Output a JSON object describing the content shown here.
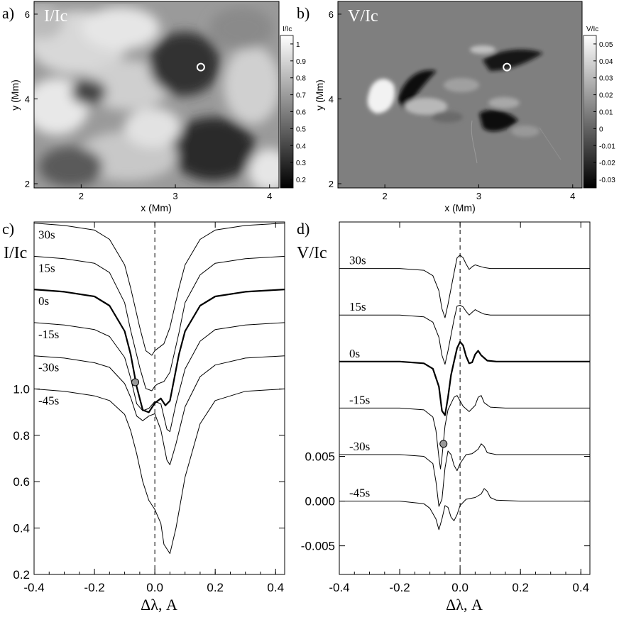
{
  "chart_data": [
    {
      "id": "a",
      "type": "heatmap",
      "panel_label": "a)",
      "title": "I/Ic",
      "xlabel": "x (Mm)",
      "ylabel": "y (Mm)",
      "xlim": [
        1.5,
        4.1
      ],
      "ylim": [
        1.9,
        6.3
      ],
      "xticks": [
        "2",
        "3",
        "4"
      ],
      "xtick_values": [
        2,
        3,
        4
      ],
      "yticks": [
        "2",
        "4",
        "6"
      ],
      "ytick_values": [
        2,
        4,
        6
      ],
      "colorbar": {
        "label": "I/Ic",
        "range": [
          0.15,
          1.05
        ],
        "ticks": [
          "1",
          "0.9",
          "0.8",
          "0.7",
          "0.6",
          "0.5",
          "0.4",
          "0.3",
          "0.2"
        ],
        "tick_values": [
          1.0,
          0.9,
          0.8,
          0.7,
          0.6,
          0.5,
          0.4,
          0.3,
          0.2
        ]
      },
      "marker": {
        "x": 3.27,
        "y": 4.75
      },
      "colors": {
        "low": "#000000",
        "high": "#ffffff"
      }
    },
    {
      "id": "b",
      "type": "heatmap",
      "panel_label": "b)",
      "title": "V/Ic",
      "xlabel": "x (Mm)",
      "ylabel": "y (Mm)",
      "xlim": [
        1.5,
        4.1
      ],
      "ylim": [
        1.9,
        6.3
      ],
      "xticks": [
        "2",
        "3",
        "4"
      ],
      "xtick_values": [
        2,
        3,
        4
      ],
      "yticks": [
        "2",
        "4",
        "6"
      ],
      "ytick_values": [
        2,
        4,
        6
      ],
      "colorbar": {
        "label": "V/Ic",
        "range": [
          -0.035,
          0.055
        ],
        "ticks": [
          "0.05",
          "0.04",
          "0.03",
          "0.02",
          "0.01",
          "0",
          "-0.01",
          "-0.02",
          "-0.03"
        ],
        "tick_values": [
          0.05,
          0.04,
          0.03,
          0.02,
          0.01,
          0,
          -0.01,
          -0.02,
          -0.03
        ]
      },
      "marker": {
        "x": 3.3,
        "y": 4.75
      },
      "colors": {
        "low": "#000000",
        "high": "#ffffff",
        "background": "#7f7f7f"
      }
    },
    {
      "id": "c",
      "type": "line",
      "panel_label": "c)",
      "ylabel": "I/Ic",
      "xlabel": "Δλ, A",
      "xlim": [
        -0.4,
        0.43
      ],
      "ylim": [
        0.2,
        1.72
      ],
      "xticks": [
        "-0.4",
        "-0.2",
        "0.0",
        "0.2",
        "0.4"
      ],
      "xtick_values": [
        -0.4,
        -0.2,
        0.0,
        0.2,
        0.4
      ],
      "yticks": [
        "1.0",
        "0.8",
        "0.6",
        "0.4",
        "0.2"
      ],
      "ytick_values": [
        1.0,
        0.8,
        0.6,
        0.4,
        0.2
      ],
      "series_offset_step": 0.143,
      "series": [
        {
          "name": "30s",
          "offset_index": 5,
          "bold": false,
          "x": [
            -0.4,
            -0.3,
            -0.2,
            -0.15,
            -0.1,
            -0.08,
            -0.05,
            -0.03,
            -0.01,
            0.0,
            0.01,
            0.03,
            0.05,
            0.08,
            0.1,
            0.15,
            0.2,
            0.3,
            0.43
          ],
          "y": [
            1.0,
            0.99,
            0.97,
            0.93,
            0.82,
            0.72,
            0.55,
            0.45,
            0.43,
            0.45,
            0.46,
            0.48,
            0.55,
            0.72,
            0.82,
            0.93,
            0.97,
            0.99,
            1.0
          ]
        },
        {
          "name": "15s",
          "offset_index": 4,
          "bold": false,
          "x": [
            -0.4,
            -0.3,
            -0.2,
            -0.15,
            -0.1,
            -0.08,
            -0.05,
            -0.03,
            -0.01,
            0.0,
            0.01,
            0.03,
            0.05,
            0.08,
            0.1,
            0.15,
            0.2,
            0.3,
            0.43
          ],
          "y": [
            1.0,
            0.99,
            0.97,
            0.93,
            0.8,
            0.68,
            0.52,
            0.43,
            0.42,
            0.44,
            0.45,
            0.46,
            0.5,
            0.67,
            0.8,
            0.92,
            0.97,
            0.99,
            1.0
          ]
        },
        {
          "name": "0s",
          "offset_index": 3,
          "bold": true,
          "x": [
            -0.4,
            -0.3,
            -0.2,
            -0.15,
            -0.1,
            -0.08,
            -0.06,
            -0.04,
            -0.02,
            0.0,
            0.02,
            0.035,
            0.05,
            0.08,
            0.1,
            0.15,
            0.2,
            0.3,
            0.43
          ],
          "y": [
            1.0,
            0.99,
            0.97,
            0.93,
            0.82,
            0.72,
            0.58,
            0.48,
            0.47,
            0.51,
            0.53,
            0.5,
            0.52,
            0.72,
            0.82,
            0.93,
            0.97,
            0.99,
            1.0
          ]
        },
        {
          "name": "-15s",
          "offset_index": 2,
          "bold": false,
          "x": [
            -0.4,
            -0.3,
            -0.2,
            -0.15,
            -0.1,
            -0.08,
            -0.06,
            -0.04,
            -0.02,
            0.0,
            0.02,
            0.04,
            0.05,
            0.07,
            0.1,
            0.15,
            0.2,
            0.3,
            0.43
          ],
          "y": [
            1.0,
            0.99,
            0.97,
            0.94,
            0.85,
            0.76,
            0.65,
            0.62,
            0.63,
            0.66,
            0.65,
            0.54,
            0.53,
            0.65,
            0.8,
            0.92,
            0.97,
            0.99,
            1.0
          ]
        },
        {
          "name": "-30s",
          "offset_index": 1,
          "bold": false,
          "x": [
            -0.4,
            -0.3,
            -0.2,
            -0.15,
            -0.1,
            -0.08,
            -0.06,
            -0.04,
            -0.02,
            0.0,
            0.02,
            0.04,
            0.05,
            0.07,
            0.1,
            0.15,
            0.2,
            0.3,
            0.43
          ],
          "y": [
            1.0,
            0.99,
            0.97,
            0.95,
            0.88,
            0.82,
            0.74,
            0.72,
            0.74,
            0.75,
            0.68,
            0.55,
            0.53,
            0.62,
            0.78,
            0.91,
            0.96,
            0.99,
            1.0
          ]
        },
        {
          "name": "-45s",
          "offset_index": 0,
          "bold": false,
          "x": [
            -0.4,
            -0.3,
            -0.2,
            -0.15,
            -0.1,
            -0.08,
            -0.06,
            -0.04,
            -0.02,
            0.0,
            0.02,
            0.03,
            0.05,
            0.07,
            0.1,
            0.15,
            0.2,
            0.3,
            0.43
          ],
          "y": [
            1.0,
            0.99,
            0.97,
            0.95,
            0.89,
            0.82,
            0.72,
            0.6,
            0.52,
            0.48,
            0.42,
            0.33,
            0.29,
            0.4,
            0.62,
            0.85,
            0.95,
            0.99,
            1.0
          ]
        }
      ],
      "marker": {
        "series": "0s",
        "x": -0.065,
        "y": 0.6
      },
      "vline": 0.0
    },
    {
      "id": "d",
      "type": "line",
      "panel_label": "d)",
      "ylabel": "V/Ic",
      "xlabel": "Δλ, A",
      "xlim": [
        -0.4,
        0.43
      ],
      "ylim": [
        -0.0082,
        0.0312
      ],
      "xticks": [
        "-0.4",
        "-0.2",
        "0.0",
        "0.2",
        "0.4"
      ],
      "xtick_values": [
        -0.4,
        -0.2,
        0.0,
        0.2,
        0.4
      ],
      "yticks": [
        "0.005",
        "0.000",
        "-0.005"
      ],
      "ytick_values": [
        0.005,
        0.0,
        -0.005
      ],
      "series_offset_step": 0.0052,
      "series": [
        {
          "name": "30s",
          "offset_index": 5,
          "bold": false,
          "x": [
            -0.4,
            -0.2,
            -0.12,
            -0.09,
            -0.07,
            -0.06,
            -0.05,
            -0.04,
            -0.02,
            -0.01,
            0.0,
            0.01,
            0.02,
            0.03,
            0.04,
            0.05,
            0.06,
            0.08,
            0.1,
            0.2,
            0.43
          ],
          "y": [
            0.0,
            0.0,
            -0.0002,
            -0.0008,
            -0.0025,
            -0.0045,
            -0.0055,
            -0.004,
            -0.0005,
            0.0012,
            0.0015,
            0.0012,
            0.0005,
            -0.0001,
            0.0002,
            0.0004,
            0.0003,
            0.0001,
            0.0,
            0.0,
            0.0
          ]
        },
        {
          "name": "15s",
          "offset_index": 4,
          "bold": false,
          "x": [
            -0.4,
            -0.2,
            -0.12,
            -0.09,
            -0.07,
            -0.06,
            -0.05,
            -0.04,
            -0.02,
            -0.01,
            0.0,
            0.01,
            0.02,
            0.03,
            0.04,
            0.05,
            0.06,
            0.08,
            0.1,
            0.2,
            0.43
          ],
          "y": [
            0.0,
            0.0,
            -0.0002,
            -0.0008,
            -0.0025,
            -0.0045,
            -0.0055,
            -0.004,
            -0.0005,
            0.001,
            0.0011,
            0.0009,
            0.0004,
            0.0,
            0.0003,
            0.0006,
            0.0004,
            0.0001,
            0.0,
            0.0,
            0.0
          ]
        },
        {
          "name": "0s",
          "offset_index": 3,
          "bold": true,
          "x": [
            -0.4,
            -0.2,
            -0.12,
            -0.09,
            -0.07,
            -0.06,
            -0.05,
            -0.04,
            -0.03,
            -0.02,
            -0.01,
            0.0,
            0.01,
            0.02,
            0.03,
            0.04,
            0.05,
            0.06,
            0.07,
            0.09,
            0.12,
            0.2,
            0.43
          ],
          "y": [
            0.0,
            0.0,
            -0.0002,
            -0.0008,
            -0.0028,
            -0.0055,
            -0.006,
            -0.004,
            -0.0015,
            0.0,
            0.0015,
            0.0022,
            0.0018,
            0.0006,
            -0.0002,
            -0.0001,
            0.0008,
            0.0012,
            0.0007,
            0.0001,
            0.0,
            0.0,
            0.0
          ]
        },
        {
          "name": "-15s",
          "offset_index": 2,
          "bold": false,
          "x": [
            -0.4,
            -0.2,
            -0.12,
            -0.09,
            -0.08,
            -0.07,
            -0.065,
            -0.06,
            -0.05,
            -0.04,
            -0.02,
            -0.01,
            0.0,
            0.01,
            0.03,
            0.05,
            0.06,
            0.07,
            0.08,
            0.1,
            0.15,
            0.43
          ],
          "y": [
            0.0,
            0.0,
            -0.0002,
            -0.001,
            -0.0025,
            -0.0055,
            -0.0068,
            -0.0055,
            -0.002,
            -0.0002,
            0.0012,
            0.0014,
            0.0008,
            0.0002,
            -0.0004,
            0.0003,
            0.0012,
            0.0014,
            0.0006,
            0.0001,
            0.0,
            0.0
          ]
        },
        {
          "name": "-30s",
          "offset_index": 1,
          "bold": false,
          "x": [
            -0.4,
            -0.2,
            -0.12,
            -0.09,
            -0.08,
            -0.07,
            -0.06,
            -0.05,
            -0.04,
            -0.03,
            -0.02,
            -0.01,
            0.0,
            0.02,
            0.04,
            0.06,
            0.07,
            0.08,
            0.09,
            0.12,
            0.2,
            0.43
          ],
          "y": [
            0.0,
            0.0,
            -0.0002,
            -0.001,
            -0.003,
            -0.0058,
            -0.005,
            -0.0015,
            0.0004,
            0.0,
            -0.0012,
            -0.0018,
            -0.001,
            0.0,
            0.0001,
            0.0006,
            0.0012,
            0.0009,
            0.0002,
            0.0,
            0.0,
            0.0
          ]
        },
        {
          "name": "-45s",
          "offset_index": 0,
          "bold": false,
          "x": [
            -0.4,
            -0.2,
            -0.12,
            -0.1,
            -0.08,
            -0.07,
            -0.06,
            -0.05,
            -0.04,
            -0.03,
            -0.02,
            -0.01,
            0.0,
            0.02,
            0.05,
            0.07,
            0.08,
            0.09,
            0.1,
            0.12,
            0.2,
            0.43
          ],
          "y": [
            0.0,
            0.0,
            -0.0003,
            -0.0008,
            -0.002,
            -0.0032,
            -0.002,
            -0.0005,
            -0.0007,
            -0.0018,
            -0.0022,
            -0.0015,
            -0.0005,
            0.0002,
            0.0004,
            0.0008,
            0.0014,
            0.0011,
            0.0004,
            0.0001,
            0.0,
            0.0
          ]
        }
      ],
      "marker": {
        "series": "-15s",
        "x": -0.055,
        "y": -0.004
      },
      "vline": 0.0
    }
  ]
}
